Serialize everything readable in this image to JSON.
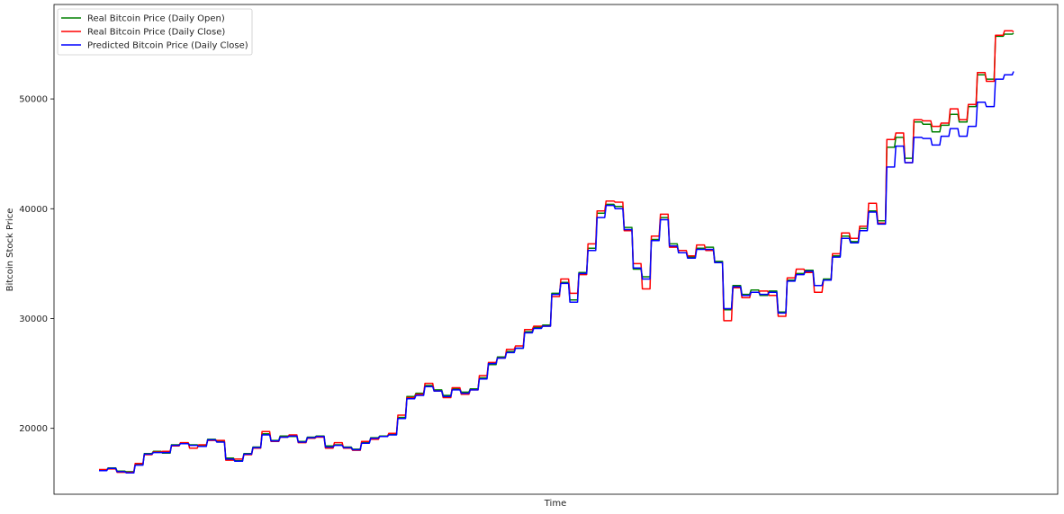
{
  "chart_data": {
    "type": "line",
    "title": "",
    "xlabel": "Time",
    "ylabel": "Bitcoin Stock Price",
    "ylim": [
      14000,
      58600
    ],
    "yticks": [
      20000,
      30000,
      40000,
      50000
    ],
    "ytick_labels": [
      "20000",
      "30000",
      "40000",
      "50000"
    ],
    "xticks_visible": false,
    "grid": false,
    "legend_position": "top-left",
    "series": [
      {
        "name": "Real Bitcoin Price (Daily Open)",
        "color": "#008000",
        "values": [
          16200,
          16400,
          16100,
          16050,
          16700,
          17700,
          17900,
          17750,
          18500,
          18650,
          18500,
          18400,
          19000,
          18800,
          17300,
          17050,
          17700,
          18300,
          19500,
          18900,
          19300,
          19250,
          18800,
          19200,
          19300,
          18400,
          18500,
          18300,
          18100,
          18700,
          19150,
          19300,
          19450,
          21000,
          22900,
          23200,
          23900,
          23500,
          23000,
          23600,
          23300,
          23600,
          24600,
          25800,
          26500,
          27000,
          27300,
          28800,
          29200,
          29400,
          32300,
          33300,
          31700,
          34200,
          36400,
          39600,
          40400,
          40200,
          38300,
          34500,
          33800,
          37200,
          39200,
          36800,
          36000,
          35600,
          36400,
          36500,
          35200,
          30800,
          33000,
          32200,
          32600,
          32100,
          32500,
          30600,
          33500,
          34100,
          34400,
          33000,
          33600,
          35700,
          37500,
          37000,
          38200,
          39800,
          38900,
          45600,
          46500,
          44600,
          47900,
          47700,
          47000,
          47600,
          48600,
          47900,
          49300,
          52200,
          51800,
          55700,
          55900,
          56000
        ]
      },
      {
        "name": "Real Bitcoin Price (Daily Close)",
        "color": "#ff0000",
        "values": [
          16250,
          16300,
          16000,
          16000,
          16800,
          17600,
          17850,
          17900,
          18400,
          18700,
          18200,
          18500,
          18900,
          18900,
          17100,
          17200,
          17600,
          18200,
          19700,
          18800,
          19200,
          19400,
          18700,
          19100,
          19200,
          18200,
          18700,
          18200,
          18000,
          18800,
          19000,
          19250,
          19550,
          21200,
          22800,
          23100,
          24100,
          23400,
          22800,
          23700,
          23100,
          23500,
          24800,
          26000,
          26400,
          27200,
          27500,
          29000,
          29300,
          29300,
          32000,
          33600,
          32300,
          34000,
          36800,
          39800,
          40700,
          40600,
          38000,
          35000,
          32700,
          37500,
          39500,
          36500,
          36200,
          35700,
          36700,
          36200,
          35100,
          29800,
          32800,
          31900,
          32400,
          32500,
          32100,
          30200,
          33700,
          34500,
          34200,
          32400,
          33500,
          35900,
          37800,
          37300,
          38400,
          40500,
          38700,
          46300,
          46900,
          44200,
          48100,
          48000,
          47500,
          47800,
          49100,
          48100,
          49500,
          52400,
          51600,
          55800,
          56200,
          56100
        ]
      },
      {
        "name": "Predicted Bitcoin Price (Daily Close)",
        "color": "#0000ff",
        "values": [
          16150,
          16350,
          16050,
          15950,
          16650,
          17650,
          17800,
          17800,
          18450,
          18600,
          18450,
          18350,
          18950,
          18750,
          17200,
          17000,
          17650,
          18250,
          19400,
          18850,
          19200,
          19300,
          18750,
          19150,
          19250,
          18300,
          18450,
          18250,
          18050,
          18650,
          19100,
          19250,
          19400,
          20900,
          22700,
          23000,
          23800,
          23400,
          22900,
          23500,
          23200,
          23500,
          24500,
          25900,
          26400,
          26900,
          27300,
          28700,
          29100,
          29300,
          32200,
          33200,
          31500,
          34100,
          36200,
          39200,
          40300,
          40000,
          38100,
          34600,
          33600,
          37100,
          39000,
          36600,
          36000,
          35500,
          36300,
          36300,
          35100,
          30900,
          32900,
          32100,
          32400,
          32200,
          32400,
          30500,
          33400,
          34000,
          34300,
          33000,
          33500,
          35600,
          37300,
          36900,
          38000,
          39700,
          38600,
          43800,
          45700,
          44200,
          46500,
          46400,
          45800,
          46600,
          47300,
          46600,
          47500,
          49700,
          49300,
          51800,
          52200,
          52500
        ]
      }
    ]
  }
}
